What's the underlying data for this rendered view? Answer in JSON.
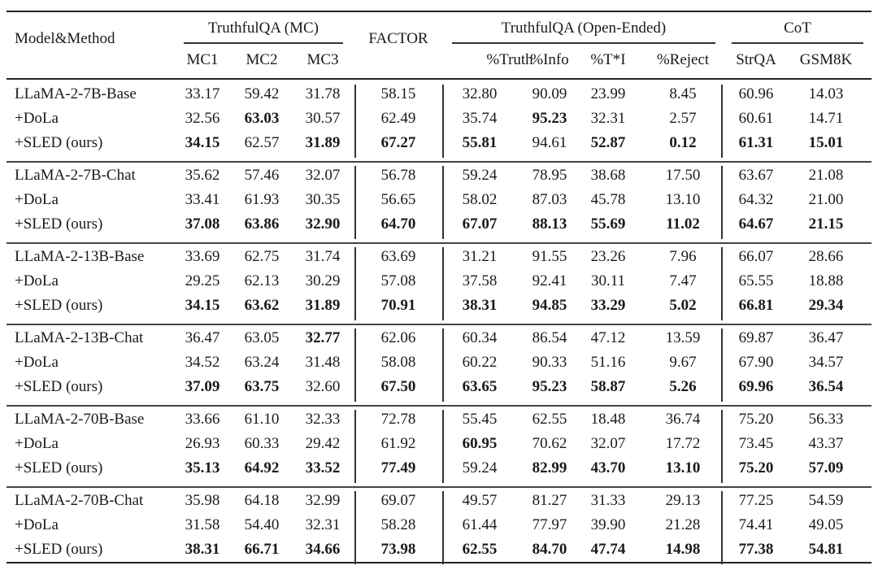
{
  "header": {
    "model_method": "Model&Method",
    "groups": [
      "TruthfulQA (MC)",
      "FACTOR",
      "TruthfulQA (Open-Ended)",
      "CoT"
    ],
    "subcolumns": [
      "MC1",
      "MC2",
      "MC3",
      "%Truth",
      "%Info",
      "%T*I",
      "%Reject",
      "StrQA",
      "GSM8K"
    ]
  },
  "rows": [
    {
      "label": "LLaMA-2-7B-Base",
      "values": [
        "33.17",
        "59.42",
        "31.78",
        "58.15",
        "32.80",
        "90.09",
        "23.99",
        "8.45",
        "60.96",
        "14.03"
      ],
      "bold": []
    },
    {
      "label": "+DoLa",
      "values": [
        "32.56",
        "63.03",
        "30.57",
        "62.49",
        "35.74",
        "95.23",
        "32.31",
        "2.57",
        "60.61",
        "14.71"
      ],
      "bold": [
        1,
        5
      ]
    },
    {
      "label": "+SLED (ours)",
      "values": [
        "34.15",
        "62.57",
        "31.89",
        "67.27",
        "55.81",
        "94.61",
        "52.87",
        "0.12",
        "61.31",
        "15.01"
      ],
      "bold": [
        0,
        2,
        3,
        4,
        6,
        7,
        8,
        9
      ]
    },
    {
      "label": "LLaMA-2-7B-Chat",
      "values": [
        "35.62",
        "57.46",
        "32.07",
        "56.78",
        "59.24",
        "78.95",
        "38.68",
        "17.50",
        "63.67",
        "21.08"
      ],
      "bold": []
    },
    {
      "label": "+DoLa",
      "values": [
        "33.41",
        "61.93",
        "30.35",
        "56.65",
        "58.02",
        "87.03",
        "45.78",
        "13.10",
        "64.32",
        "21.00"
      ],
      "bold": []
    },
    {
      "label": "+SLED (ours)",
      "values": [
        "37.08",
        "63.86",
        "32.90",
        "64.70",
        "67.07",
        "88.13",
        "55.69",
        "11.02",
        "64.67",
        "21.15"
      ],
      "bold": [
        0,
        1,
        2,
        3,
        4,
        5,
        6,
        7,
        8,
        9
      ]
    },
    {
      "label": "LLaMA-2-13B-Base",
      "values": [
        "33.69",
        "62.75",
        "31.74",
        "63.69",
        "31.21",
        "91.55",
        "23.26",
        "7.96",
        "66.07",
        "28.66"
      ],
      "bold": []
    },
    {
      "label": "+DoLa",
      "values": [
        "29.25",
        "62.13",
        "30.29",
        "57.08",
        "37.58",
        "92.41",
        "30.11",
        "7.47",
        "65.55",
        "18.88"
      ],
      "bold": []
    },
    {
      "label": "+SLED (ours)",
      "values": [
        "34.15",
        "63.62",
        "31.89",
        "70.91",
        "38.31",
        "94.85",
        "33.29",
        "5.02",
        "66.81",
        "29.34"
      ],
      "bold": [
        0,
        1,
        2,
        3,
        4,
        5,
        6,
        7,
        8,
        9
      ]
    },
    {
      "label": "LLaMA-2-13B-Chat",
      "values": [
        "36.47",
        "63.05",
        "32.77",
        "62.06",
        "60.34",
        "86.54",
        "47.12",
        "13.59",
        "69.87",
        "36.47"
      ],
      "bold": [
        2
      ]
    },
    {
      "label": "+DoLa",
      "values": [
        "34.52",
        "63.24",
        "31.48",
        "58.08",
        "60.22",
        "90.33",
        "51.16",
        "9.67",
        "67.90",
        "34.57"
      ],
      "bold": []
    },
    {
      "label": "+SLED (ours)",
      "values": [
        "37.09",
        "63.75",
        "32.60",
        "67.50",
        "63.65",
        "95.23",
        "58.87",
        "5.26",
        "69.96",
        "36.54"
      ],
      "bold": [
        0,
        1,
        3,
        4,
        5,
        6,
        7,
        8,
        9
      ]
    },
    {
      "label": "LLaMA-2-70B-Base",
      "values": [
        "33.66",
        "61.10",
        "32.33",
        "72.78",
        "55.45",
        "62.55",
        "18.48",
        "36.74",
        "75.20",
        "56.33"
      ],
      "bold": []
    },
    {
      "label": "+DoLa",
      "values": [
        "26.93",
        "60.33",
        "29.42",
        "61.92",
        "60.95",
        "70.62",
        "32.07",
        "17.72",
        "73.45",
        "43.37"
      ],
      "bold": [
        4
      ]
    },
    {
      "label": "+SLED (ours)",
      "values": [
        "35.13",
        "64.92",
        "33.52",
        "77.49",
        "59.24",
        "82.99",
        "43.70",
        "13.10",
        "75.20",
        "57.09"
      ],
      "bold": [
        0,
        1,
        2,
        3,
        5,
        6,
        7,
        8,
        9
      ]
    },
    {
      "label": "LLaMA-2-70B-Chat",
      "values": [
        "35.98",
        "64.18",
        "32.99",
        "69.07",
        "49.57",
        "81.27",
        "31.33",
        "29.13",
        "77.25",
        "54.59"
      ],
      "bold": []
    },
    {
      "label": "+DoLa",
      "values": [
        "31.58",
        "54.40",
        "32.31",
        "58.28",
        "61.44",
        "77.97",
        "39.90",
        "21.28",
        "74.41",
        "49.05"
      ],
      "bold": []
    },
    {
      "label": "+SLED (ours)",
      "values": [
        "38.31",
        "66.71",
        "34.66",
        "73.98",
        "62.55",
        "84.70",
        "47.74",
        "14.98",
        "77.38",
        "54.81"
      ],
      "bold": [
        0,
        1,
        2,
        3,
        4,
        5,
        6,
        7,
        8,
        9
      ]
    }
  ]
}
